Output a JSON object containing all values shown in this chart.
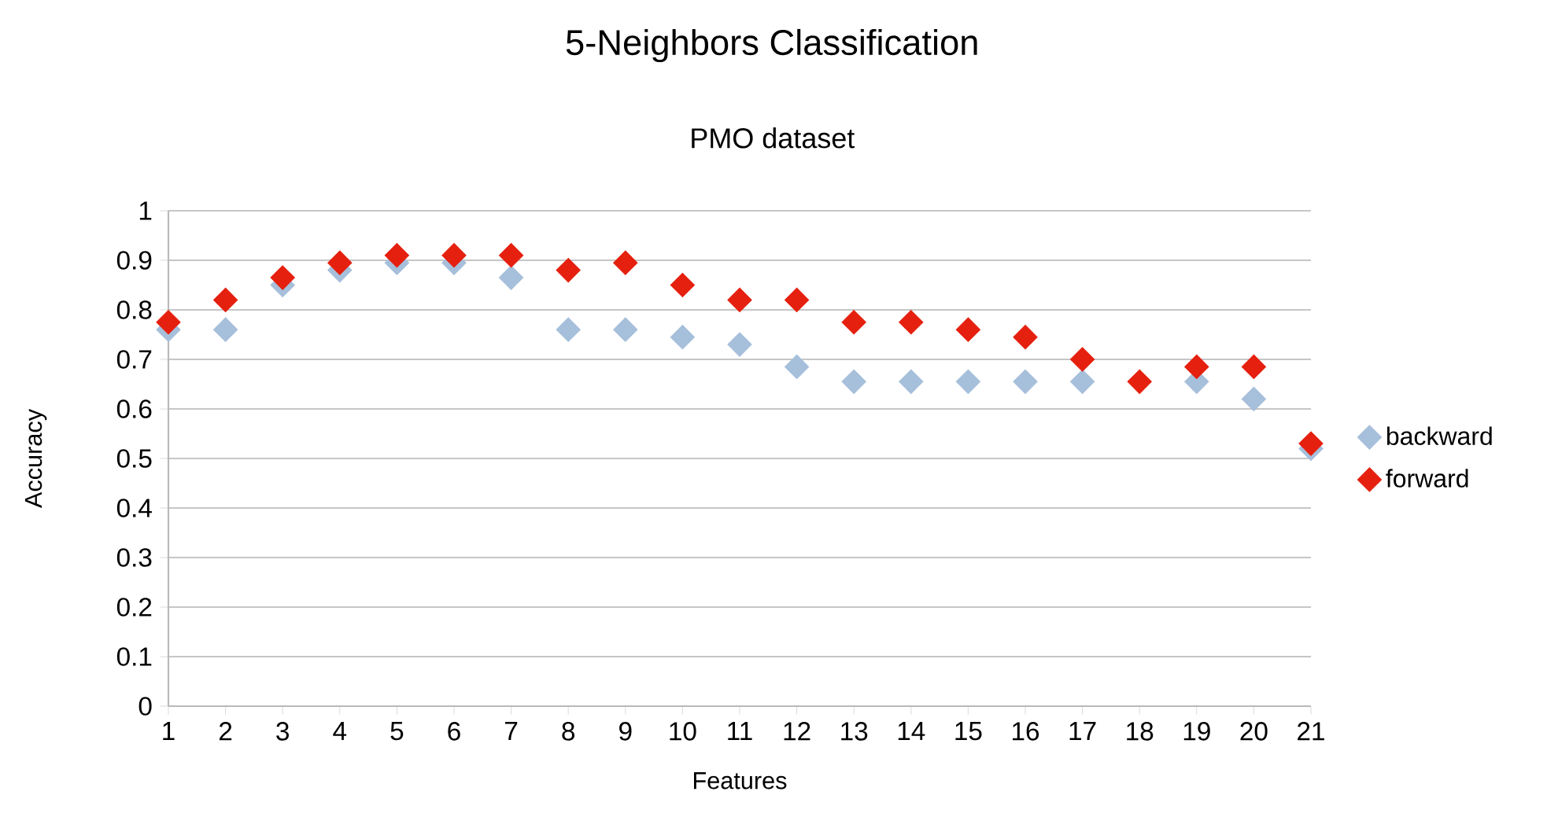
{
  "chart_data": {
    "type": "scatter",
    "title": "5-Neighbors Classification",
    "subtitle": "PMO dataset",
    "xlabel": "Features",
    "ylabel": "Accuracy",
    "x": [
      1,
      2,
      3,
      4,
      5,
      6,
      7,
      8,
      9,
      10,
      11,
      12,
      13,
      14,
      15,
      16,
      17,
      18,
      19,
      20,
      21
    ],
    "xlim": [
      1,
      21
    ],
    "xticks": [
      1,
      2,
      3,
      4,
      5,
      6,
      7,
      8,
      9,
      10,
      11,
      12,
      13,
      14,
      15,
      16,
      17,
      18,
      19,
      20,
      21
    ],
    "ylim": [
      0,
      1
    ],
    "yticks": [
      0,
      0.1,
      0.2,
      0.3,
      0.4,
      0.5,
      0.6,
      0.7,
      0.8,
      0.9,
      1
    ],
    "grid": "y",
    "legend": "right",
    "marker": "diamond",
    "series": [
      {
        "name": "backward",
        "color": "#a6bfdb",
        "values": [
          0.76,
          0.76,
          0.85,
          0.88,
          0.895,
          0.895,
          0.865,
          0.76,
          0.76,
          0.745,
          0.73,
          0.685,
          0.655,
          0.655,
          0.655,
          0.655,
          0.655,
          null,
          0.655,
          0.62,
          0.52
        ]
      },
      {
        "name": "forward",
        "color": "#e5200f",
        "values": [
          0.775,
          0.82,
          0.865,
          0.895,
          0.91,
          0.91,
          0.91,
          0.88,
          0.895,
          0.85,
          0.82,
          0.82,
          0.775,
          0.775,
          0.76,
          0.745,
          0.7,
          0.655,
          0.685,
          0.685,
          0.53
        ]
      }
    ]
  }
}
